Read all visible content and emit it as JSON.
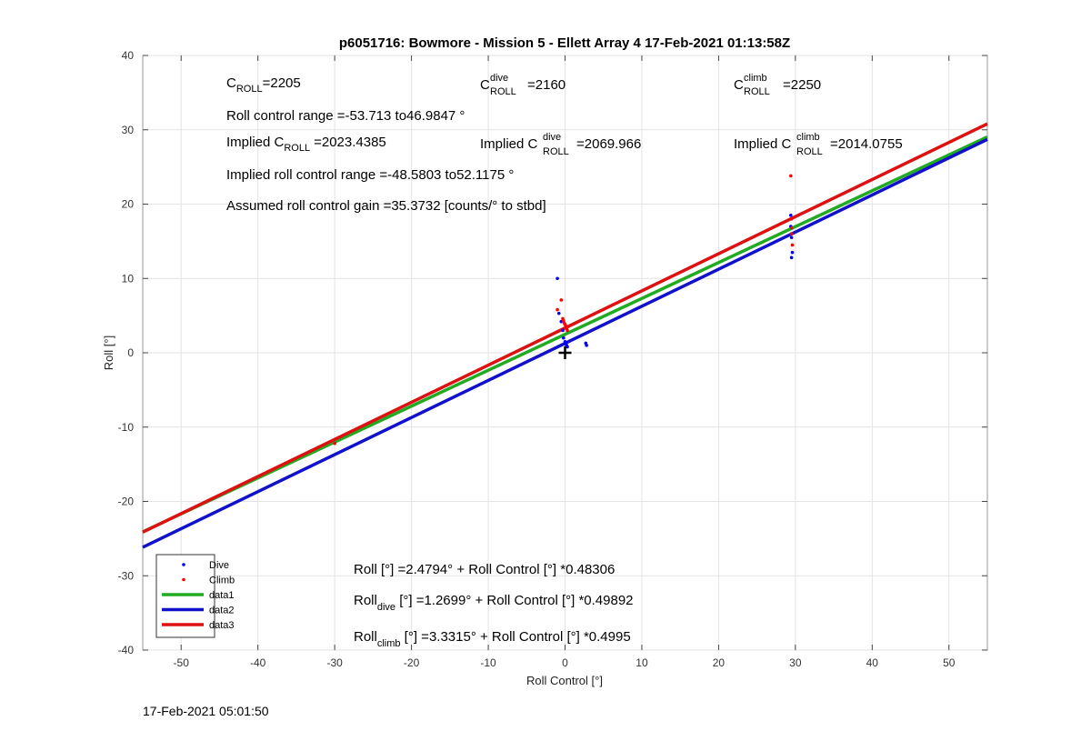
{
  "footer_timestamp": "17-Feb-2021 05:01:50",
  "annotations": {
    "c_roll_main": "C",
    "c_roll_main_sub": "ROLL",
    "c_roll_value": "=2205",
    "c_dive_main": "C",
    "c_dive_sup": "dive",
    "c_dive_sub": "ROLL",
    "c_dive_value": "=2160",
    "c_climb_main": "C",
    "c_climb_sup": "climb",
    "c_climb_sub": "ROLL",
    "c_climb_value": "=2250",
    "roll_control_range": "Roll control range =-53.713 to46.9847 °",
    "implied_c_roll_prefix": "Implied C",
    "implied_c_roll_sub": "ROLL",
    "implied_c_roll_value": "=2023.4385",
    "implied_dive_prefix": "Implied C",
    "implied_dive_sup": "dive",
    "implied_dive_sub": "ROLL",
    "implied_dive_value": "=2069.966",
    "implied_climb_prefix": "Implied C",
    "implied_climb_sup": "climb",
    "implied_climb_sub": "ROLL",
    "implied_climb_value": "=2014.0755",
    "implied_range": "Implied roll control range =-48.5803 to52.1175 °",
    "assumed_gain": "Assumed roll control gain =35.3732 [counts/° to stbd]",
    "eq_all": "Roll [°] =2.4794° + Roll Control [°] *0.48306",
    "eq_dive_prefix": "Roll",
    "eq_dive_sub": "dive",
    "eq_dive_rest": " [°] =1.2699° + Roll Control [°] *0.49892",
    "eq_climb_prefix": "Roll",
    "eq_climb_sub": "climb",
    "eq_climb_rest": " [°] =3.3315° + Roll Control [°] *0.4995"
  },
  "colors": {
    "dive": "#0000ff",
    "climb": "#ff0000",
    "data1": "#22aa22",
    "data2": "#1111cc",
    "data3": "#dd1111",
    "marker": "#000000"
  },
  "chart_data": {
    "type": "scatter",
    "title": "p6051716: Bowmore - Mission 5 - Ellett Array 4 17-Feb-2021 01:13:58Z",
    "xlabel": "Roll Control [°]",
    "ylabel": "Roll [°]",
    "xlim": [
      -55,
      55
    ],
    "ylim": [
      -40,
      40
    ],
    "xticks": [
      -50,
      -40,
      -30,
      -20,
      -10,
      0,
      10,
      20,
      30,
      40,
      50
    ],
    "yticks": [
      -40,
      -30,
      -20,
      -10,
      0,
      10,
      20,
      30,
      40
    ],
    "grid": true,
    "legend_position": "bottom-left",
    "reference_marker": {
      "label": "+",
      "x": 0,
      "y": 0
    },
    "series": [
      {
        "name": "Dive",
        "kind": "points",
        "color": "#0000ff",
        "x": [
          -1.0,
          -0.8,
          -0.5,
          -0.3,
          -0.2,
          0,
          0.1,
          0.2,
          0.3,
          2.7,
          2.8,
          29.4,
          29.4,
          29.5,
          29.5,
          29.6,
          29.5
        ],
        "y": [
          10.0,
          5.3,
          4.2,
          3.0,
          2.0,
          1.5,
          1.2,
          1.0,
          0.8,
          1.3,
          1.0,
          18.5,
          17.0,
          16.0,
          15.5,
          13.5,
          12.8
        ]
      },
      {
        "name": "Climb",
        "kind": "points",
        "color": "#ff0000",
        "x": [
          -1.0,
          -0.5,
          -0.3,
          -0.2,
          -0.1,
          0,
          0.1,
          0.2,
          0.3,
          -30.0,
          29.4,
          29.5,
          29.5,
          29.6,
          29.5
        ],
        "y": [
          5.8,
          7.1,
          4.6,
          4.3,
          4.0,
          3.8,
          3.6,
          3.3,
          3.0,
          -12.2,
          23.8,
          18.0,
          16.8,
          14.5,
          16.0
        ]
      },
      {
        "name": "data1",
        "kind": "line",
        "color": "#22aa22",
        "intercept": 2.4794,
        "slope": 0.48306,
        "x": [
          -55,
          55
        ]
      },
      {
        "name": "data2",
        "kind": "line",
        "color": "#1111cc",
        "intercept": 1.2699,
        "slope": 0.49892,
        "x": [
          -55,
          55
        ]
      },
      {
        "name": "data3",
        "kind": "line",
        "color": "#dd1111",
        "intercept": 3.3315,
        "slope": 0.4995,
        "x": [
          -55,
          55
        ]
      }
    ]
  }
}
